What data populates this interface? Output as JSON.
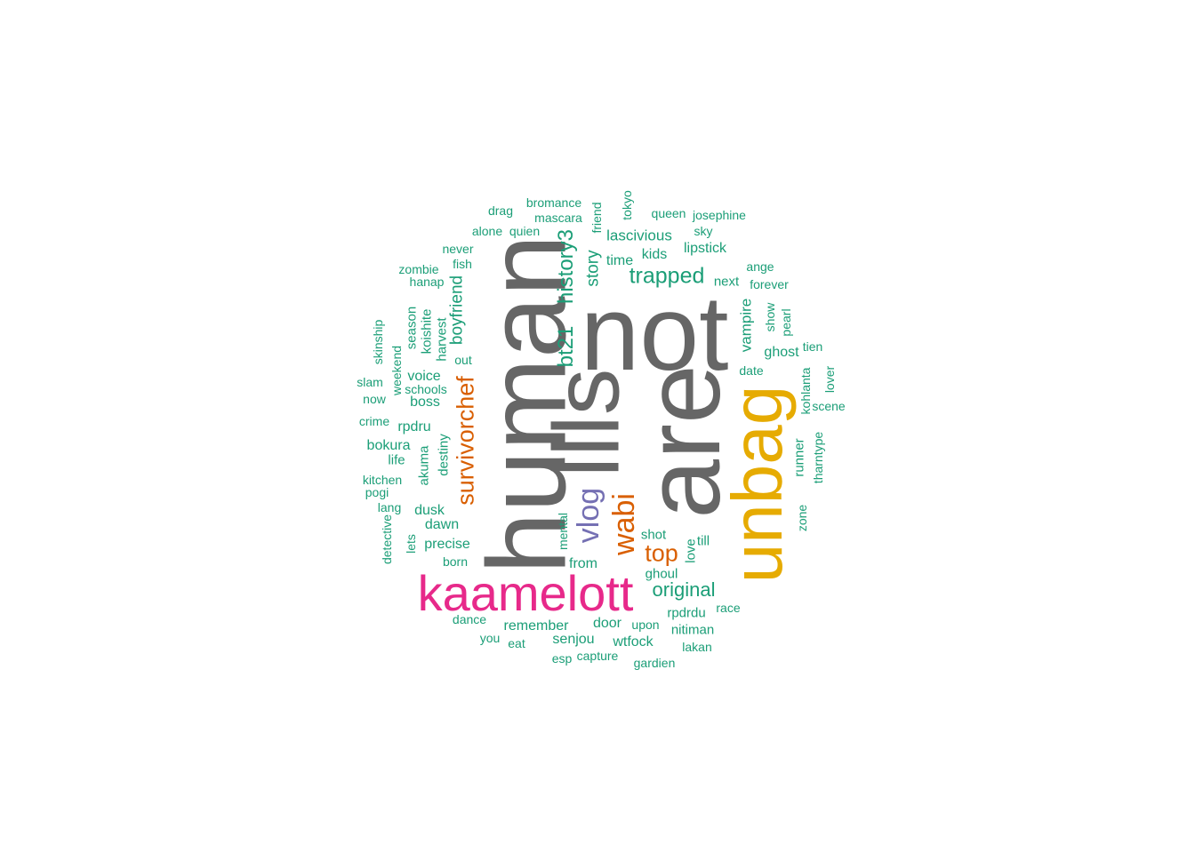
{
  "palette": {
    "gray": "#666666",
    "gold": "#E6AB02",
    "magenta": "#E7298A",
    "orange": "#D95F02",
    "purple": "#7570B3",
    "green": "#1B9E77"
  },
  "words": [
    {
      "text": "not",
      "color": "gray"
    },
    {
      "text": "human",
      "color": "gray"
    },
    {
      "text": "are",
      "color": "gray"
    },
    {
      "text": "llls",
      "color": "gray"
    },
    {
      "text": "unbag",
      "color": "gold"
    },
    {
      "text": "kaamelott",
      "color": "magenta"
    },
    {
      "text": "wabi",
      "color": "orange"
    },
    {
      "text": "vlog",
      "color": "purple"
    },
    {
      "text": "survivorchef",
      "color": "orange"
    },
    {
      "text": "top",
      "color": "orange"
    },
    {
      "text": "trapped",
      "color": "green"
    },
    {
      "text": "bt21",
      "color": "green"
    },
    {
      "text": "history3",
      "color": "green"
    },
    {
      "text": "original",
      "color": "green"
    },
    {
      "text": "boyfriend",
      "color": "green"
    },
    {
      "text": "story",
      "color": "green"
    },
    {
      "text": "lascivious",
      "color": "green"
    },
    {
      "text": "vampire",
      "color": "green"
    },
    {
      "text": "bromance",
      "color": "green"
    },
    {
      "text": "drag",
      "color": "green"
    },
    {
      "text": "mascara",
      "color": "green"
    },
    {
      "text": "friend",
      "color": "green"
    },
    {
      "text": "tokyo",
      "color": "green"
    },
    {
      "text": "queen",
      "color": "green"
    },
    {
      "text": "josephine",
      "color": "green"
    },
    {
      "text": "alone",
      "color": "green"
    },
    {
      "text": "quien",
      "color": "green"
    },
    {
      "text": "sky",
      "color": "green"
    },
    {
      "text": "never",
      "color": "green"
    },
    {
      "text": "lipstick",
      "color": "green"
    },
    {
      "text": "kids",
      "color": "green"
    },
    {
      "text": "fish",
      "color": "green"
    },
    {
      "text": "time",
      "color": "green"
    },
    {
      "text": "zombie",
      "color": "green"
    },
    {
      "text": "ange",
      "color": "green"
    },
    {
      "text": "hanap",
      "color": "green"
    },
    {
      "text": "next",
      "color": "green"
    },
    {
      "text": "forever",
      "color": "green"
    },
    {
      "text": "skinship",
      "color": "green"
    },
    {
      "text": "season",
      "color": "green"
    },
    {
      "text": "koishite",
      "color": "green"
    },
    {
      "text": "harvest",
      "color": "green"
    },
    {
      "text": "show",
      "color": "green"
    },
    {
      "text": "pearl",
      "color": "green"
    },
    {
      "text": "weekend",
      "color": "green"
    },
    {
      "text": "out",
      "color": "green"
    },
    {
      "text": "tien",
      "color": "green"
    },
    {
      "text": "ghost",
      "color": "green"
    },
    {
      "text": "date",
      "color": "green"
    },
    {
      "text": "voice",
      "color": "green"
    },
    {
      "text": "slam",
      "color": "green"
    },
    {
      "text": "schools",
      "color": "green"
    },
    {
      "text": "lover",
      "color": "green"
    },
    {
      "text": "kohlanta",
      "color": "green"
    },
    {
      "text": "now",
      "color": "green"
    },
    {
      "text": "boss",
      "color": "green"
    },
    {
      "text": "scene",
      "color": "green"
    },
    {
      "text": "crime",
      "color": "green"
    },
    {
      "text": "rpdru",
      "color": "green"
    },
    {
      "text": "bokura",
      "color": "green"
    },
    {
      "text": "destiny",
      "color": "green"
    },
    {
      "text": "runner",
      "color": "green"
    },
    {
      "text": "tharntype",
      "color": "green"
    },
    {
      "text": "life",
      "color": "green"
    },
    {
      "text": "akuma",
      "color": "green"
    },
    {
      "text": "kitchen",
      "color": "green"
    },
    {
      "text": "pogi",
      "color": "green"
    },
    {
      "text": "lang",
      "color": "green"
    },
    {
      "text": "dusk",
      "color": "green"
    },
    {
      "text": "dawn",
      "color": "green"
    },
    {
      "text": "zone",
      "color": "green"
    },
    {
      "text": "detective",
      "color": "green"
    },
    {
      "text": "mental",
      "color": "green"
    },
    {
      "text": "shot",
      "color": "green"
    },
    {
      "text": "till",
      "color": "green"
    },
    {
      "text": "lets",
      "color": "green"
    },
    {
      "text": "precise",
      "color": "green"
    },
    {
      "text": "love",
      "color": "green"
    },
    {
      "text": "born",
      "color": "green"
    },
    {
      "text": "from",
      "color": "green"
    },
    {
      "text": "ghoul",
      "color": "green"
    },
    {
      "text": "rpdrdu",
      "color": "green"
    },
    {
      "text": "race",
      "color": "green"
    },
    {
      "text": "dance",
      "color": "green"
    },
    {
      "text": "door",
      "color": "green"
    },
    {
      "text": "upon",
      "color": "green"
    },
    {
      "text": "remember",
      "color": "green"
    },
    {
      "text": "nitiman",
      "color": "green"
    },
    {
      "text": "you",
      "color": "green"
    },
    {
      "text": "eat",
      "color": "green"
    },
    {
      "text": "senjou",
      "color": "green"
    },
    {
      "text": "wtfock",
      "color": "green"
    },
    {
      "text": "lakan",
      "color": "green"
    },
    {
      "text": "esp",
      "color": "green"
    },
    {
      "text": "capture",
      "color": "green"
    },
    {
      "text": "gardien",
      "color": "green"
    }
  ]
}
